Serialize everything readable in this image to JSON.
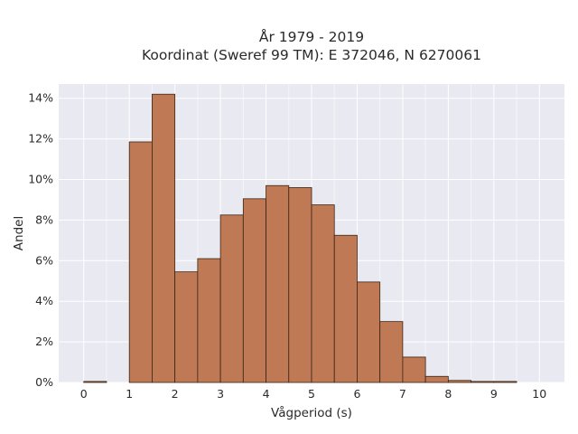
{
  "chart_data": {
    "type": "bar",
    "title_lines": [
      "År 1979 - 2019",
      "Koordinat (Sweref 99 TM): E 372046, N 6270061"
    ],
    "xlabel": "Vågperiod (s)",
    "ylabel": "Andel",
    "bin_width": 0.5,
    "bin_starts": [
      0,
      0.5,
      1,
      1.5,
      2,
      2.5,
      3,
      3.5,
      4,
      4.5,
      5,
      5.5,
      6,
      6.5,
      7,
      7.5,
      8,
      8.5,
      9,
      9.5
    ],
    "values": [
      0.05,
      0,
      11.85,
      14.2,
      5.45,
      6.1,
      8.25,
      9.05,
      9.7,
      9.6,
      8.75,
      7.25,
      4.95,
      3.0,
      1.25,
      0.3,
      0.1,
      0.05,
      0.05,
      0
    ],
    "xlim": [
      -0.55,
      10.55
    ],
    "ylim": [
      0,
      14.7
    ],
    "x_ticks": [
      "0",
      "1",
      "2",
      "3",
      "4",
      "5",
      "6",
      "7",
      "8",
      "9",
      "10"
    ],
    "y_ticks": [
      "0%",
      "2%",
      "4%",
      "6%",
      "8%",
      "10%",
      "12%",
      "14%"
    ],
    "bar_color": "#bf7a55",
    "plot_background": "#e9e9f1",
    "grid": true
  }
}
